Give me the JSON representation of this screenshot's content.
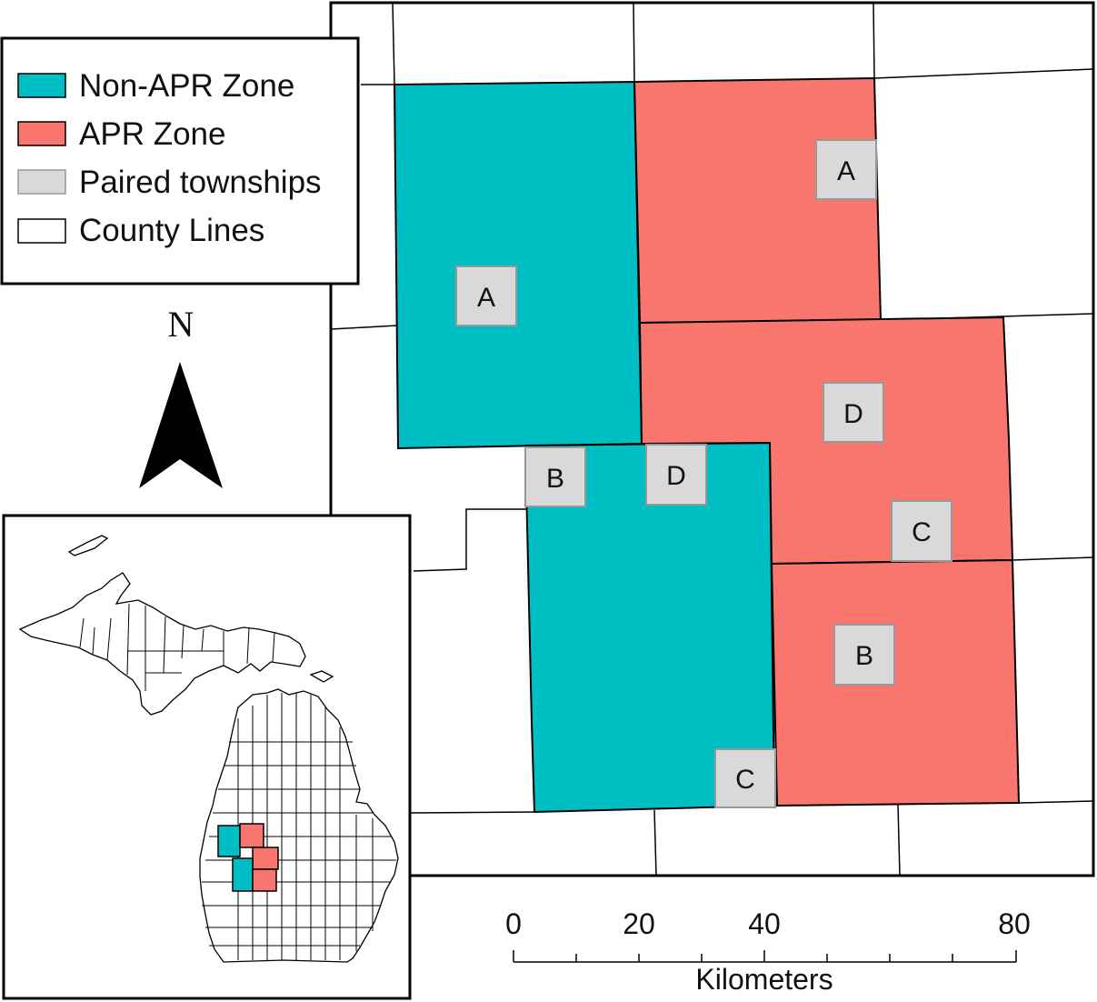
{
  "colors": {
    "non_apr": "#00BFC4",
    "apr": "#F8766D",
    "paired": "#D9D9D9",
    "county": "#FFFFFF",
    "outline": "#000000"
  },
  "legend": {
    "items": [
      {
        "label": "Non-APR Zone",
        "color": "#00BFC4"
      },
      {
        "label": "APR Zone",
        "color": "#F8766D"
      },
      {
        "label": "Paired townships",
        "color": "#D9D9D9"
      },
      {
        "label": "County Lines",
        "color": "#FFFFFF"
      }
    ]
  },
  "north_arrow": {
    "label": "N"
  },
  "townships": [
    {
      "zone": "Non-APR",
      "label": "A"
    },
    {
      "zone": "APR",
      "label": "A"
    },
    {
      "zone": "APR",
      "label": "D"
    },
    {
      "zone": "Non-APR",
      "label": "B"
    },
    {
      "zone": "Non-APR",
      "label": "D"
    },
    {
      "zone": "APR",
      "label": "C"
    },
    {
      "zone": "APR",
      "label": "B"
    },
    {
      "zone": "Non-APR",
      "label": "C"
    }
  ],
  "scale_bar": {
    "ticks": [
      "0",
      "20",
      "40",
      "80"
    ],
    "unit": "Kilometers"
  },
  "inset": {
    "region": "Michigan",
    "highlighted_zones": [
      "Non-APR",
      "APR"
    ]
  }
}
